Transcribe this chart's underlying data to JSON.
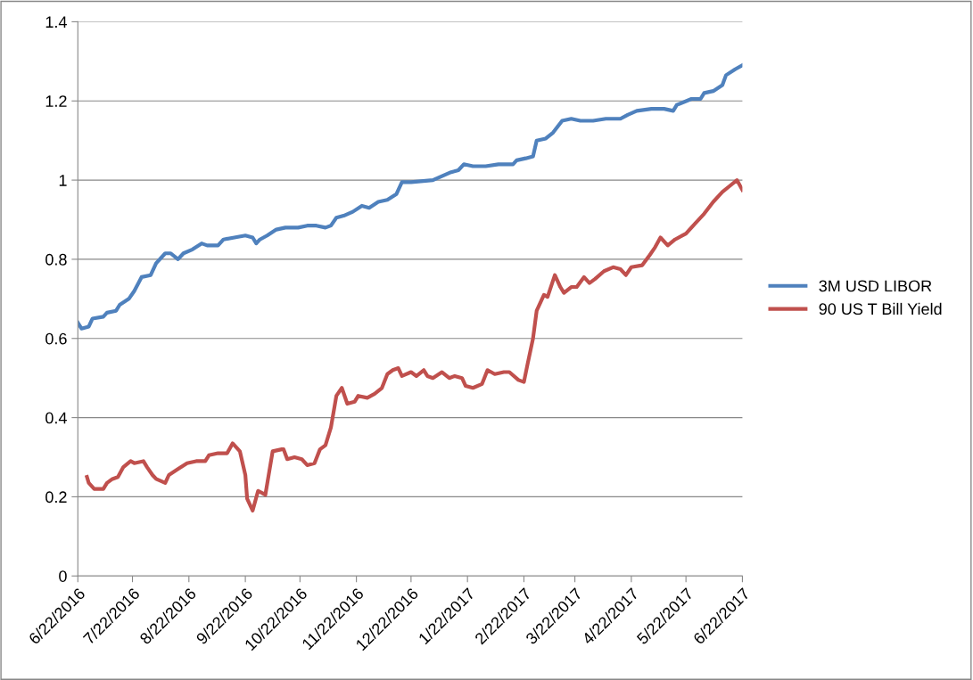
{
  "chart_data": {
    "type": "line",
    "xlim": [
      "2016-06-22",
      "2017-06-22"
    ],
    "xticks": [
      {
        "value": "2016-06-22",
        "label": "6/22/2016"
      },
      {
        "value": "2016-07-22",
        "label": "7/22/2016"
      },
      {
        "value": "2016-08-22",
        "label": "8/22/2016"
      },
      {
        "value": "2016-09-22",
        "label": "9/22/2016"
      },
      {
        "value": "2016-10-22",
        "label": "10/22/2016"
      },
      {
        "value": "2016-11-22",
        "label": "11/22/2016"
      },
      {
        "value": "2016-12-22",
        "label": "12/22/2016"
      },
      {
        "value": "2017-01-22",
        "label": "1/22/2017"
      },
      {
        "value": "2017-02-22",
        "label": "2/22/2017"
      },
      {
        "value": "2017-03-22",
        "label": "3/22/2017"
      },
      {
        "value": "2017-04-22",
        "label": "4/22/2017"
      },
      {
        "value": "2017-05-22",
        "label": "5/22/2017"
      },
      {
        "value": "2017-06-22",
        "label": "6/22/2017"
      }
    ],
    "ylim": [
      0,
      1.4
    ],
    "yticks": [
      0,
      0.2,
      0.4,
      0.6,
      0.8,
      1,
      1.2,
      1.4
    ],
    "grid": "y",
    "legend": "right",
    "series": [
      {
        "name": "3M USD LIBOR",
        "color": "#4f81bd",
        "x": [
          "2016-06-22",
          "2016-06-24",
          "2016-06-28",
          "2016-06-30",
          "2016-07-06",
          "2016-07-08",
          "2016-07-13",
          "2016-07-15",
          "2016-07-20",
          "2016-07-23",
          "2016-07-27",
          "2016-08-01",
          "2016-08-04",
          "2016-08-09",
          "2016-08-12",
          "2016-08-16",
          "2016-08-19",
          "2016-08-24",
          "2016-08-29",
          "2016-09-01",
          "2016-09-07",
          "2016-09-10",
          "2016-09-16",
          "2016-09-22",
          "2016-09-26",
          "2016-09-28",
          "2016-09-30",
          "2016-10-04",
          "2016-10-09",
          "2016-10-14",
          "2016-10-21",
          "2016-10-26",
          "2016-10-31",
          "2016-11-05",
          "2016-11-08",
          "2016-11-11",
          "2016-11-15",
          "2016-11-20",
          "2016-11-25",
          "2016-11-29",
          "2016-12-04",
          "2016-12-09",
          "2016-12-14",
          "2016-12-17",
          "2016-12-22",
          "2017-01-03",
          "2017-01-08",
          "2017-01-13",
          "2017-01-17",
          "2017-01-20",
          "2017-01-25",
          "2017-02-01",
          "2017-02-08",
          "2017-02-16",
          "2017-02-18",
          "2017-02-23",
          "2017-02-27",
          "2017-03-01",
          "2017-03-06",
          "2017-03-10",
          "2017-03-15",
          "2017-03-20",
          "2017-03-25",
          "2017-04-01",
          "2017-04-08",
          "2017-04-16",
          "2017-04-20",
          "2017-04-25",
          "2017-05-03",
          "2017-05-10",
          "2017-05-15",
          "2017-05-17",
          "2017-05-25",
          "2017-05-30",
          "2017-06-01",
          "2017-06-06",
          "2017-06-11",
          "2017-06-13",
          "2017-06-18",
          "2017-06-22"
        ],
        "values": [
          0.64,
          0.625,
          0.63,
          0.65,
          0.655,
          0.665,
          0.67,
          0.685,
          0.7,
          0.72,
          0.755,
          0.76,
          0.79,
          0.815,
          0.815,
          0.8,
          0.815,
          0.825,
          0.84,
          0.835,
          0.835,
          0.85,
          0.855,
          0.86,
          0.855,
          0.84,
          0.85,
          0.86,
          0.875,
          0.88,
          0.88,
          0.885,
          0.885,
          0.88,
          0.885,
          0.905,
          0.91,
          0.92,
          0.935,
          0.93,
          0.945,
          0.95,
          0.965,
          0.995,
          0.995,
          1.0,
          1.01,
          1.02,
          1.025,
          1.04,
          1.035,
          1.035,
          1.04,
          1.04,
          1.05,
          1.055,
          1.06,
          1.1,
          1.105,
          1.12,
          1.15,
          1.155,
          1.15,
          1.15,
          1.155,
          1.155,
          1.165,
          1.175,
          1.18,
          1.18,
          1.175,
          1.19,
          1.205,
          1.205,
          1.22,
          1.225,
          1.24,
          1.265,
          1.28,
          1.29
        ]
      },
      {
        "name": "90 US T Bill Yield",
        "color": "#c0504d",
        "x": [
          "2016-06-27",
          "2016-06-28",
          "2016-07-01",
          "2016-07-06",
          "2016-07-08",
          "2016-07-11",
          "2016-07-14",
          "2016-07-17",
          "2016-07-21",
          "2016-07-23",
          "2016-07-28",
          "2016-07-30",
          "2016-08-02",
          "2016-08-04",
          "2016-08-09",
          "2016-08-11",
          "2016-08-16",
          "2016-08-21",
          "2016-08-26",
          "2016-08-31",
          "2016-09-02",
          "2016-09-07",
          "2016-09-12",
          "2016-09-15",
          "2016-09-19",
          "2016-09-22",
          "2016-09-23",
          "2016-09-26",
          "2016-09-29",
          "2016-10-03",
          "2016-10-07",
          "2016-10-12",
          "2016-10-13",
          "2016-10-15",
          "2016-10-19",
          "2016-10-23",
          "2016-10-26",
          "2016-10-30",
          "2016-11-02",
          "2016-11-05",
          "2016-11-08",
          "2016-11-11",
          "2016-11-14",
          "2016-11-17",
          "2016-11-21",
          "2016-11-23",
          "2016-11-28",
          "2016-12-02",
          "2016-12-06",
          "2016-12-09",
          "2016-12-12",
          "2016-12-15",
          "2016-12-17",
          "2016-12-22",
          "2016-12-25",
          "2016-12-29",
          "2016-12-31",
          "2017-01-03",
          "2017-01-08",
          "2017-01-12",
          "2017-01-15",
          "2017-01-19",
          "2017-01-21",
          "2017-01-25",
          "2017-01-30",
          "2017-02-02",
          "2017-02-06",
          "2017-02-11",
          "2017-02-14",
          "2017-02-19",
          "2017-02-22",
          "2017-02-24",
          "2017-02-27",
          "2017-03-01",
          "2017-03-05",
          "2017-03-07",
          "2017-03-11",
          "2017-03-14",
          "2017-03-16",
          "2017-03-20",
          "2017-03-23",
          "2017-03-27",
          "2017-03-30",
          "2017-04-02",
          "2017-04-07",
          "2017-04-12",
          "2017-04-16",
          "2017-04-19",
          "2017-04-22",
          "2017-04-28",
          "2017-05-02",
          "2017-05-05",
          "2017-05-08",
          "2017-05-12",
          "2017-05-16",
          "2017-05-22",
          "2017-05-27",
          "2017-06-01",
          "2017-06-06",
          "2017-06-11",
          "2017-06-15",
          "2017-06-19",
          "2017-06-22"
        ],
        "values": [
          0.25,
          0.235,
          0.22,
          0.22,
          0.235,
          0.245,
          0.25,
          0.275,
          0.29,
          0.285,
          0.29,
          0.275,
          0.255,
          0.245,
          0.235,
          0.255,
          0.27,
          0.285,
          0.29,
          0.29,
          0.305,
          0.31,
          0.31,
          0.335,
          0.315,
          0.255,
          0.195,
          0.165,
          0.215,
          0.205,
          0.315,
          0.32,
          0.32,
          0.295,
          0.3,
          0.295,
          0.28,
          0.285,
          0.32,
          0.33,
          0.375,
          0.455,
          0.475,
          0.435,
          0.44,
          0.455,
          0.45,
          0.46,
          0.475,
          0.51,
          0.52,
          0.525,
          0.505,
          0.515,
          0.505,
          0.52,
          0.505,
          0.5,
          0.515,
          0.5,
          0.505,
          0.5,
          0.48,
          0.475,
          0.485,
          0.52,
          0.51,
          0.515,
          0.515,
          0.495,
          0.49,
          0.535,
          0.6,
          0.67,
          0.71,
          0.705,
          0.76,
          0.73,
          0.715,
          0.73,
          0.73,
          0.755,
          0.74,
          0.75,
          0.77,
          0.78,
          0.775,
          0.76,
          0.78,
          0.785,
          0.81,
          0.83,
          0.855,
          0.835,
          0.85,
          0.865,
          0.89,
          0.915,
          0.945,
          0.97,
          0.985,
          1.0,
          0.975
        ]
      }
    ]
  }
}
